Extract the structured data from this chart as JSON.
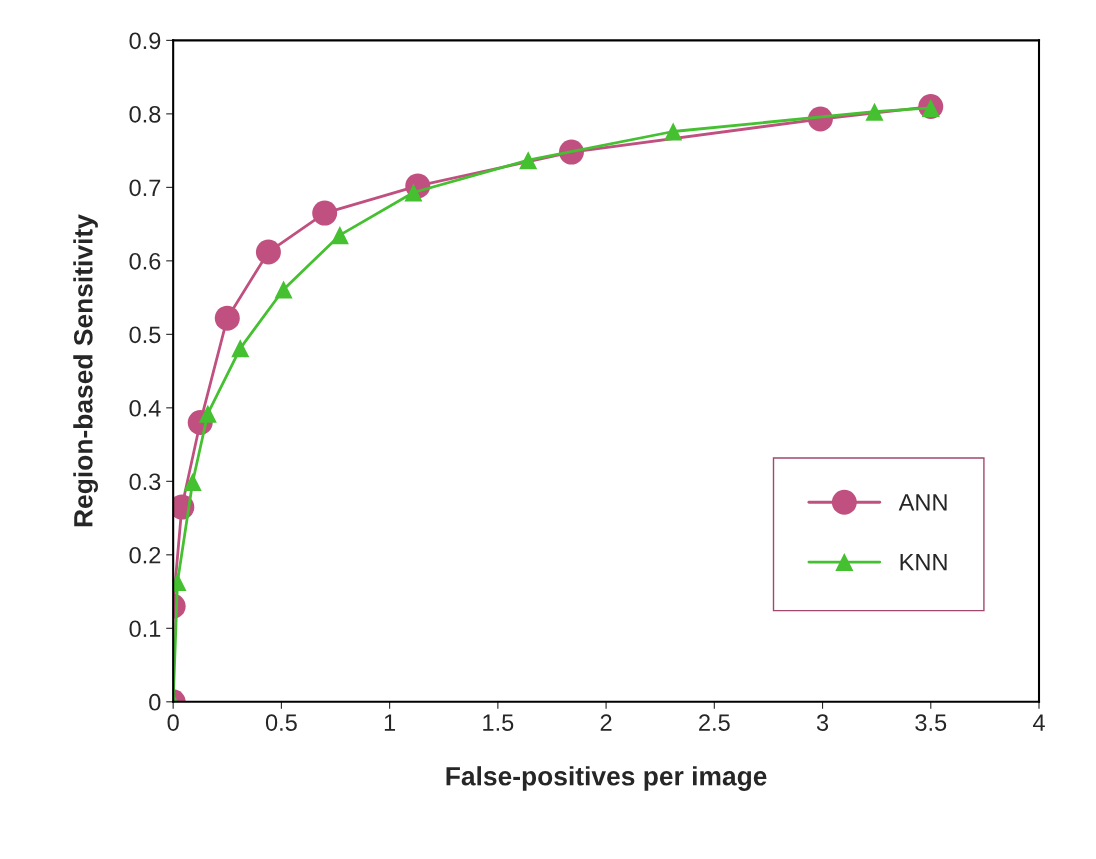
{
  "chart_data": {
    "type": "line",
    "xlabel": "False-positives per image",
    "ylabel": "Region-based Sensitivity",
    "xlim": [
      0,
      4
    ],
    "xticks": [
      0,
      0.5,
      1,
      1.5,
      2,
      2.5,
      3,
      3.5,
      4
    ],
    "ylim": [
      0,
      0.9
    ],
    "yticks": [
      0,
      0.1,
      0.2,
      0.3,
      0.4,
      0.5,
      0.6,
      0.7,
      0.8,
      0.9
    ],
    "grid": false,
    "legend": "bottom right",
    "line_style": "solid",
    "series": [
      {
        "name": "ANN",
        "color": "#c0507f",
        "marker": "circle",
        "x": [
          0,
          0,
          0.04,
          0.125,
          0.25,
          0.44,
          0.7,
          1.13,
          1.84,
          2.99,
          3.5
        ],
        "values": [
          0,
          0.13,
          0.265,
          0.38,
          0.522,
          0.612,
          0.665,
          0.702,
          0.748,
          0.793,
          0.81
        ]
      },
      {
        "name": "KNN",
        "color": "#44c030",
        "marker": "triangle",
        "x": [
          0,
          0.02,
          0.09,
          0.16,
          0.31,
          0.51,
          0.77,
          1.11,
          1.64,
          2.31,
          3.24,
          3.5
        ],
        "values": [
          0,
          0.163,
          0.299,
          0.392,
          0.481,
          0.561,
          0.635,
          0.693,
          0.737,
          0.776,
          0.803,
          0.808
        ]
      }
    ]
  }
}
